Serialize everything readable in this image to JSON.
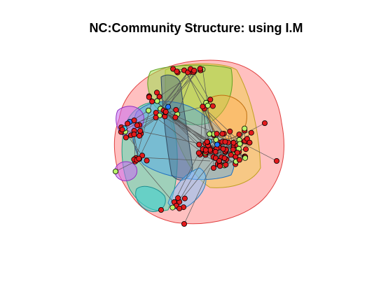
{
  "title": "NC:Community Structure: using I.M",
  "colors": {
    "background": "#ffffff",
    "vertex_primary": "#e31a1c",
    "vertex_secondary": "#b7f26a",
    "vertex_tertiary": "#1f77ff",
    "vertex_quaternary": "#46d6ff",
    "edge": "#555555",
    "community_fills": [
      "#ff8c8c",
      "#f0d04a",
      "#9bdf4a",
      "#3fe0b4",
      "#4aa4f0",
      "#6a5cf2",
      "#c86af2",
      "#38d0d0",
      "#7ac4ff",
      "#ffb04a"
    ]
  }
}
